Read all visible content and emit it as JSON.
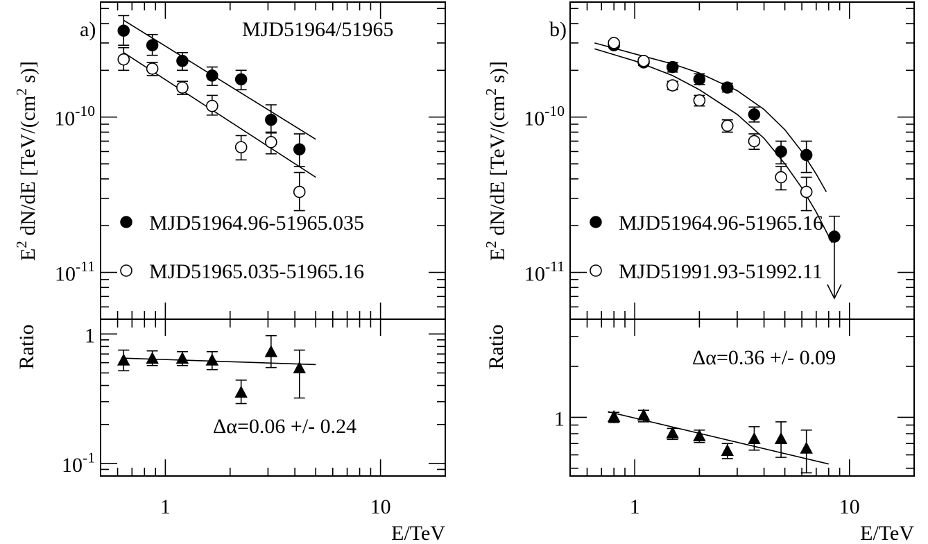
{
  "chart_data": [
    {
      "panel": "a",
      "type": "scatter",
      "panel_label": "a)",
      "annotation": "MJD51964/51965",
      "xlabel": "E/TeV",
      "x_tick_labels": [
        "1",
        "10"
      ],
      "xlim": [
        0.5,
        20
      ],
      "x_scale": "log",
      "top": {
        "ylabel": "E² dN/dE [TeV/(cm² s)]",
        "y_scale": "log",
        "ylim": [
          5e-12,
          5.5e-10
        ],
        "y_tick_labels": [
          {
            "base": "10",
            "exp": "-10",
            "value": 1e-10
          },
          {
            "base": "10",
            "exp": "-11",
            "value": 1e-11
          }
        ],
        "series": [
          {
            "name": "MJD51964.96-51965.035",
            "marker": "filled-circle",
            "x": [
              0.64,
              0.87,
              1.2,
              1.65,
              2.25,
              3.1,
              4.2
            ],
            "y": [
              3.6e-10,
              2.9e-10,
              2.3e-10,
              1.85e-10,
              1.75e-10,
              9.6e-11,
              6.2e-11
            ],
            "err_low": [
              2.9e-10,
              2.5e-10,
              2e-10,
              1.6e-10,
              1.5e-10,
              8e-11,
              4.8e-11
            ],
            "err_high": [
              4.5e-10,
              3.4e-10,
              2.6e-10,
              2.1e-10,
              2e-10,
              1.2e-10,
              7.8e-11
            ],
            "fit": {
              "x": [
                0.64,
                5.0
              ],
              "y": [
                4.2e-10,
                7.2e-11
              ]
            }
          },
          {
            "name": "MJD51965.035-51965.16",
            "marker": "open-circle",
            "x": [
              0.64,
              0.87,
              1.2,
              1.65,
              2.25,
              3.1,
              4.2
            ],
            "y": [
              2.35e-10,
              2.05e-10,
              1.55e-10,
              1.18e-10,
              6.4e-11,
              6.9e-11,
              3.3e-11
            ],
            "err_low": [
              2e-10,
              1.85e-10,
              1.4e-10,
              1.03e-10,
              5.3e-11,
              5.8e-11,
              2.5e-11
            ],
            "err_high": [
              2.8e-10,
              2.25e-10,
              1.7e-10,
              1.38e-10,
              7.6e-11,
              7.9e-11,
              4.4e-11
            ],
            "fit": {
              "x": [
                0.64,
                5.0
              ],
              "y": [
                2.6e-10,
                4.1e-11
              ]
            }
          }
        ]
      },
      "bottom": {
        "ylabel": "Ratio",
        "y_scale": "log",
        "ylim": [
          0.08,
          1.3
        ],
        "y_tick_labels": [
          {
            "base": "1",
            "exp": "",
            "value": 1
          },
          {
            "base": "10",
            "exp": "-1",
            "value": 0.1
          }
        ],
        "annotation": "Δα=0.06 +/- 0.24",
        "series": {
          "marker": "filled-triangle",
          "x": [
            0.64,
            0.87,
            1.2,
            1.65,
            2.25,
            3.1,
            4.2
          ],
          "y": [
            0.62,
            0.64,
            0.64,
            0.62,
            0.35,
            0.72,
            0.54
          ],
          "err_low": [
            0.52,
            0.57,
            0.57,
            0.53,
            0.29,
            0.55,
            0.32
          ],
          "err_high": [
            0.75,
            0.74,
            0.73,
            0.73,
            0.44,
            0.97,
            0.75
          ],
          "fit": {
            "x": [
              0.64,
              5.0
            ],
            "y": [
              0.65,
              0.58
            ]
          }
        }
      }
    },
    {
      "panel": "b",
      "type": "scatter",
      "panel_label": "b)",
      "xlabel": "E/TeV",
      "x_tick_labels": [
        "1",
        "10"
      ],
      "xlim": [
        0.5,
        20
      ],
      "x_scale": "log",
      "top": {
        "ylabel": "E² dN/dE [TeV/(cm² s)]",
        "y_scale": "log",
        "ylim": [
          5e-12,
          5.5e-10
        ],
        "y_tick_labels": [
          {
            "base": "10",
            "exp": "-10",
            "value": 1e-10
          },
          {
            "base": "10",
            "exp": "-11",
            "value": 1e-11
          }
        ],
        "series": [
          {
            "name": "MJD51964.96-51965.16",
            "marker": "filled-circle",
            "x": [
              0.8,
              1.1,
              1.5,
              2.0,
              2.7,
              3.6,
              4.8,
              6.3
            ],
            "y": [
              2.9e-10,
              2.25e-10,
              2.1e-10,
              1.75e-10,
              1.55e-10,
              1.04e-10,
              6e-11,
              5.7e-11
            ],
            "err_low": [
              2.8e-10,
              2.15e-10,
              1.95e-10,
              1.62e-10,
              1.45e-10,
              9.3e-11,
              5e-11,
              4.4e-11
            ],
            "err_high": [
              3e-10,
              2.35e-10,
              2.25e-10,
              1.9e-10,
              1.65e-10,
              1.16e-10,
              7e-11,
              7e-11
            ],
            "upper_limit": {
              "x": 8.5,
              "y": 1.7e-11,
              "err_high": 2.3e-11
            },
            "fit": {
              "x": [
                0.65,
                1.0,
                1.5,
                2.0,
                3.0,
                4.0,
                5.0,
                6.0,
                7.0,
                7.8
              ],
              "y": [
                3e-10,
                2.55e-10,
                2.2e-10,
                1.92e-10,
                1.48e-10,
                1.12e-10,
                8.3e-11,
                6e-11,
                4.3e-11,
                3.3e-11
              ]
            }
          },
          {
            "name": "MJD51991.93-51992.11",
            "marker": "open-circle",
            "x": [
              0.8,
              1.1,
              1.5,
              2.0,
              2.7,
              3.6,
              4.8,
              6.3
            ],
            "y": [
              3e-10,
              2.3e-10,
              1.6e-10,
              1.28e-10,
              8.8e-11,
              7e-11,
              4.1e-11,
              3.3e-11
            ],
            "err_low": [
              2.9e-10,
              2.2e-10,
              1.5e-10,
              1.18e-10,
              8e-11,
              6.2e-11,
              3.4e-11,
              2.5e-11
            ],
            "err_high": [
              3.1e-10,
              2.4e-10,
              1.7e-10,
              1.38e-10,
              9.6e-11,
              7.8e-11,
              4.8e-11,
              4.1e-11
            ],
            "fit": {
              "x": [
                0.65,
                1.0,
                1.5,
                2.0,
                3.0,
                4.0,
                5.0,
                6.0,
                7.0,
                8.3
              ],
              "y": [
                2.75e-10,
                2.3e-10,
                1.85e-10,
                1.5e-10,
                1.04e-10,
                7.3e-11,
                5e-11,
                3.5e-11,
                2.45e-11,
                1.55e-11
              ]
            }
          }
        ]
      },
      "bottom": {
        "ylabel": "Ratio",
        "y_scale": "log",
        "ylim": [
          0.45,
          3.8
        ],
        "y_tick_labels": [
          {
            "base": "1",
            "exp": "",
            "value": 1
          }
        ],
        "annotation": "Δα=0.36 +/- 0.09",
        "series": {
          "marker": "filled-triangle",
          "x": [
            0.8,
            1.1,
            1.5,
            2.0,
            2.7,
            3.6,
            4.8,
            6.3
          ],
          "y": [
            1.0,
            1.02,
            0.8,
            0.77,
            0.63,
            0.74,
            0.74,
            0.65
          ],
          "err_low": [
            0.93,
            0.94,
            0.74,
            0.71,
            0.57,
            0.64,
            0.58,
            0.47
          ],
          "err_high": [
            1.07,
            1.1,
            0.86,
            0.84,
            0.7,
            0.88,
            0.94,
            0.84
          ],
          "fit": {
            "x": [
              0.75,
              8.0
            ],
            "y": [
              1.08,
              0.53
            ]
          }
        }
      }
    }
  ]
}
